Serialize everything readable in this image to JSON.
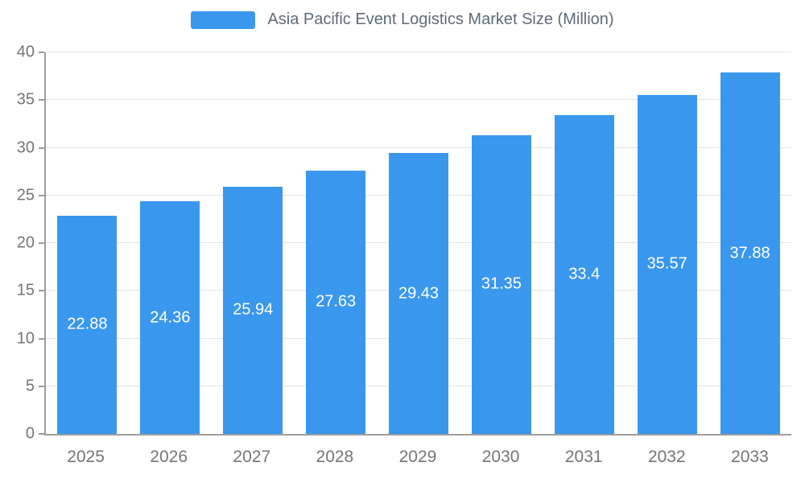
{
  "chart_data": {
    "type": "bar",
    "title": "Asia Pacific Event Logistics Market Size (Million)",
    "categories": [
      "2025",
      "2026",
      "2027",
      "2028",
      "2029",
      "2030",
      "2031",
      "2032",
      "2033"
    ],
    "values": [
      22.88,
      24.36,
      25.94,
      27.63,
      29.43,
      31.35,
      33.4,
      35.57,
      37.88
    ],
    "series_name": "Asia Pacific Event Logistics Market Size (Million)",
    "xlabel": "",
    "ylabel": "",
    "ylim": [
      0,
      40
    ],
    "ytick_step": 5,
    "grid": true,
    "legend_position": "top",
    "colors": {
      "bar": "#3a97ee",
      "value_label": "#ffffff",
      "axis_line": "#9d9d9d",
      "gridline": "#e4e4e4",
      "axis_text": "#757575",
      "legend_text": "#5e6b78",
      "background": "#ffffff"
    }
  }
}
